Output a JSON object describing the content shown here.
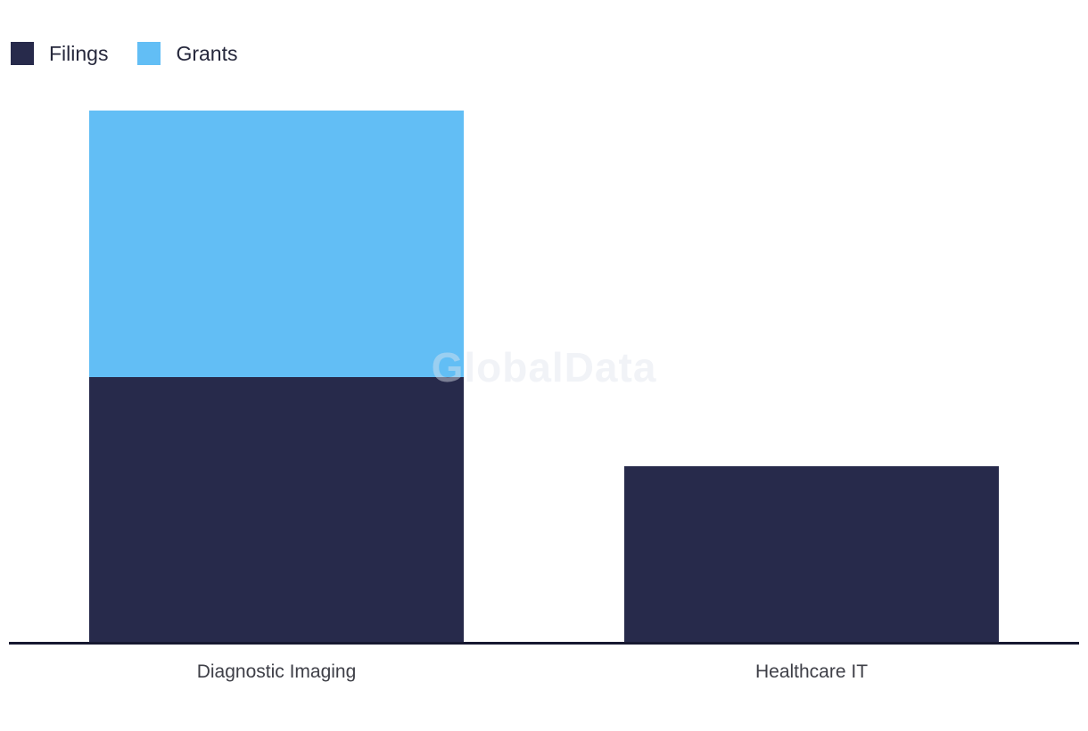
{
  "watermark": {
    "text": "GlobalData"
  },
  "legend": {
    "items": [
      {
        "label": "Filings",
        "color": "#272A4B"
      },
      {
        "label": "Grants",
        "color": "#62BEF5"
      }
    ]
  },
  "chart_data": {
    "type": "bar",
    "stacked": true,
    "orientation": "vertical",
    "title": "",
    "xlabel": "",
    "ylabel": "",
    "categories": [
      "Diagnostic Imaging",
      "Healthcare IT"
    ],
    "series": [
      {
        "name": "Filings",
        "color": "#272A4B",
        "values": [
          3,
          2
        ]
      },
      {
        "name": "Grants",
        "color": "#62BEF5",
        "values": [
          3,
          0
        ]
      }
    ],
    "ylim": [
      0,
      6
    ],
    "y_axis_visible": false,
    "x_axis_line_color": "#171931",
    "gridlines": false,
    "legend_position": "top-left",
    "watermark": "GlobalData"
  },
  "colors": {
    "background": "#FFFFFF",
    "filings": "#272A4B",
    "grants": "#62BEF5",
    "axis_line": "#171931",
    "category_label": "#3E3F47",
    "legend_label": "#26283C"
  }
}
